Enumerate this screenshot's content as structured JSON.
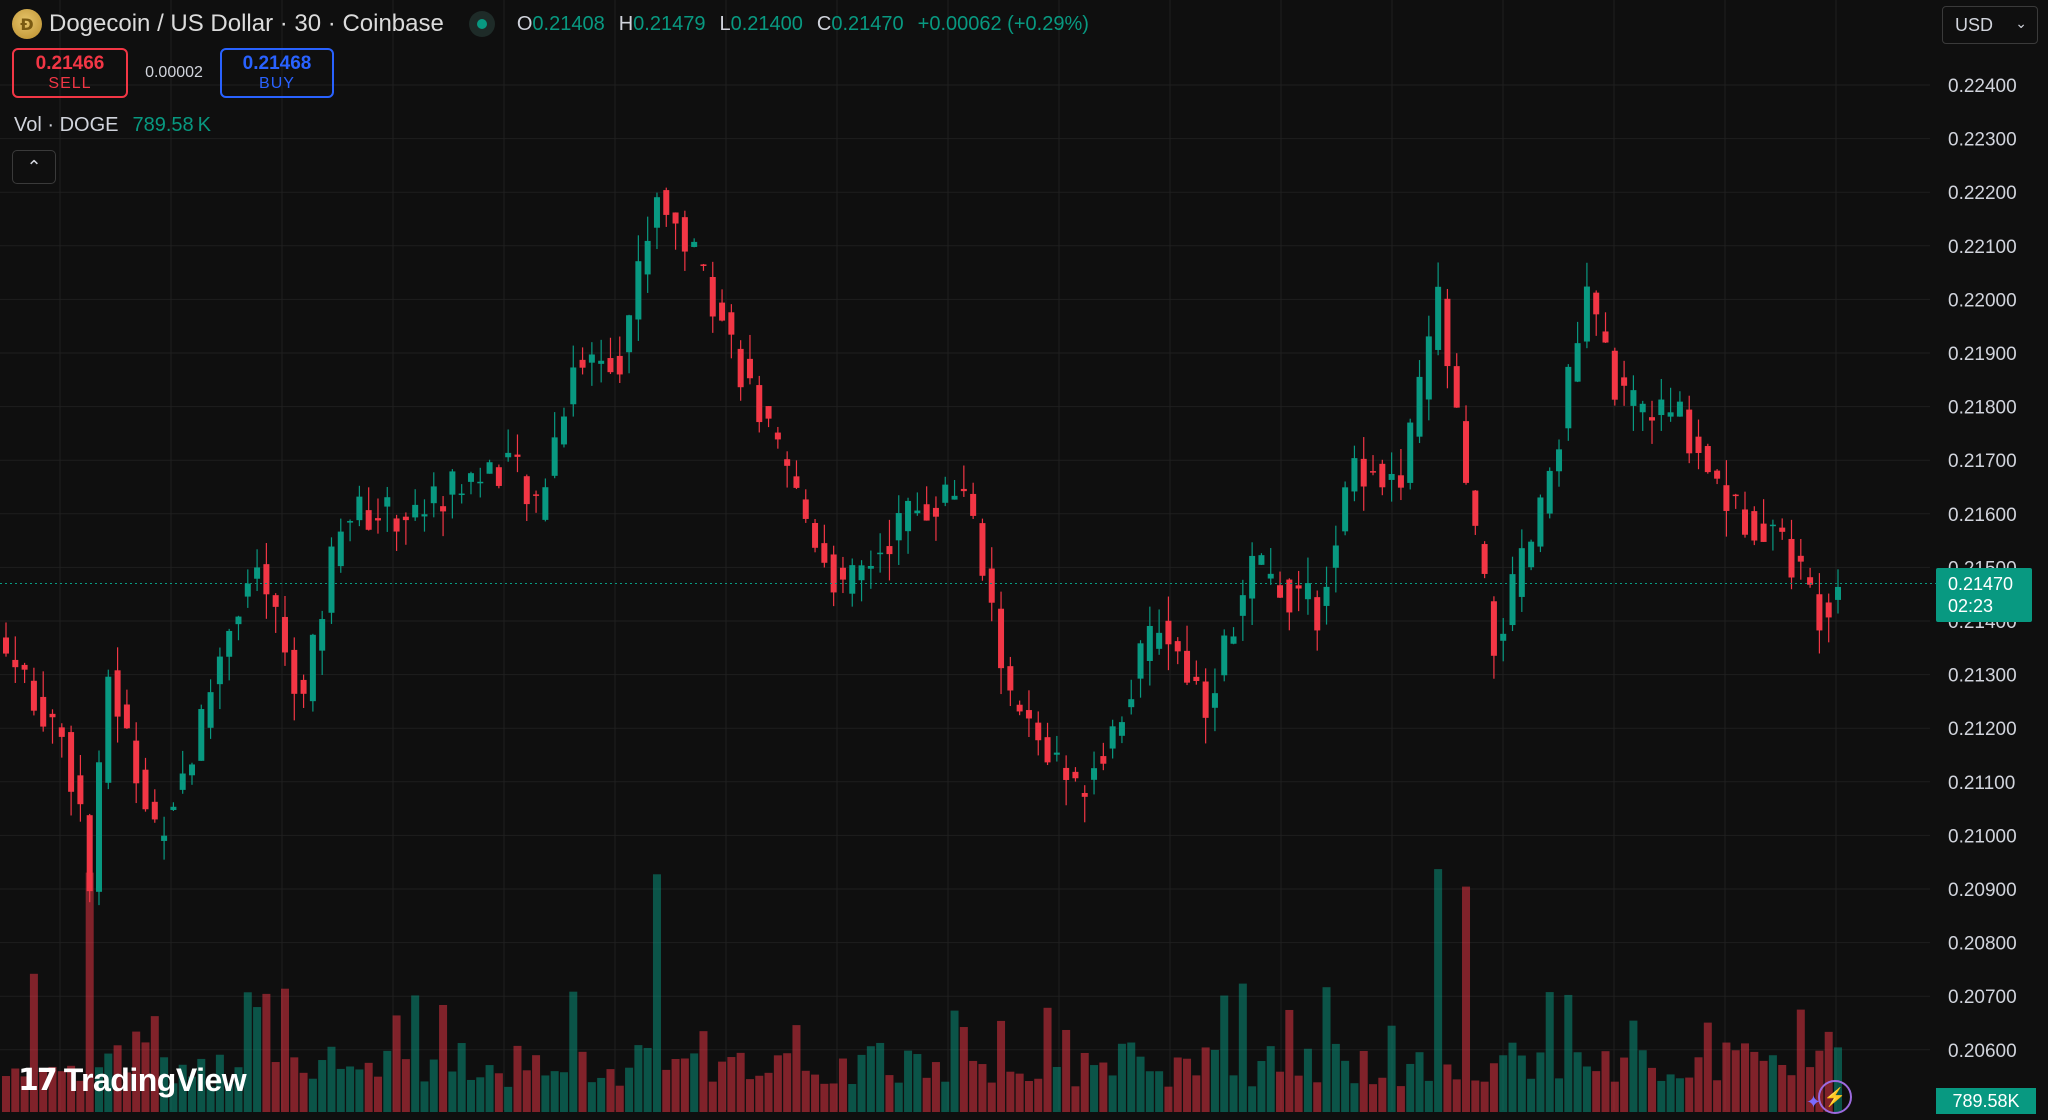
{
  "header": {
    "icon": "dogecoin-icon",
    "title": "Dogecoin / US Dollar · 30 · Coinbase",
    "o_label": "O",
    "o_value": "0.21408",
    "h_label": "H",
    "h_value": "0.21479",
    "l_label": "L",
    "l_value": "0.21400",
    "c_label": "C",
    "c_value": "0.21470",
    "change": "+0.00062 (+0.29%)"
  },
  "trade": {
    "sell_price": "0.21466",
    "sell_label": "SELL",
    "spread": "0.00002",
    "buy_price": "0.21468",
    "buy_label": "BUY"
  },
  "volume_legend": {
    "label": "Vol · DOGE",
    "value": "789.58 K"
  },
  "currency_select": {
    "value": "USD"
  },
  "last_price": {
    "price": "0.21470",
    "countdown": "02:23"
  },
  "volume_tag": "789.58K",
  "brand": {
    "mark": "17",
    "name": "TradingView"
  },
  "colors": {
    "up": "#089981",
    "down": "#f23645",
    "background": "#0f0f0f",
    "grid": "#1f1f1f",
    "sell": "#f23645",
    "buy": "#2962ff"
  },
  "chart_data": {
    "type": "candlestick",
    "interval": "30",
    "ylim": [
      0.2055,
      0.2245
    ],
    "y_ticks": [
      "0.22400",
      "0.22300",
      "0.22200",
      "0.22100",
      "0.22000",
      "0.21900",
      "0.21800",
      "0.21700",
      "0.21600",
      "0.21500",
      "0.21400",
      "0.21300",
      "0.21200",
      "0.21100",
      "0.21000",
      "0.20900",
      "0.20800",
      "0.20700",
      "0.20600"
    ],
    "last_price": 0.2147,
    "grid": true,
    "key_points": [
      {
        "i": 0,
        "c": 0.2134
      },
      {
        "i": 6,
        "c": 0.2118
      },
      {
        "i": 8,
        "c": 0.2105
      },
      {
        "i": 9,
        "c": 0.209
      },
      {
        "i": 11,
        "c": 0.213
      },
      {
        "i": 16,
        "c": 0.21
      },
      {
        "i": 20,
        "c": 0.2115
      },
      {
        "i": 24,
        "c": 0.214
      },
      {
        "i": 27,
        "c": 0.215
      },
      {
        "i": 32,
        "c": 0.2125
      },
      {
        "i": 36,
        "c": 0.216
      },
      {
        "i": 44,
        "c": 0.216
      },
      {
        "i": 48,
        "c": 0.2165
      },
      {
        "i": 54,
        "c": 0.217
      },
      {
        "i": 57,
        "c": 0.216
      },
      {
        "i": 61,
        "c": 0.2188
      },
      {
        "i": 66,
        "c": 0.219
      },
      {
        "i": 70,
        "c": 0.222
      },
      {
        "i": 75,
        "c": 0.2205
      },
      {
        "i": 83,
        "c": 0.217
      },
      {
        "i": 90,
        "c": 0.2145
      },
      {
        "i": 97,
        "c": 0.216
      },
      {
        "i": 103,
        "c": 0.2165
      },
      {
        "i": 108,
        "c": 0.2125
      },
      {
        "i": 115,
        "c": 0.2108
      },
      {
        "i": 119,
        "c": 0.212
      },
      {
        "i": 124,
        "c": 0.214
      },
      {
        "i": 129,
        "c": 0.2125
      },
      {
        "i": 134,
        "c": 0.215
      },
      {
        "i": 141,
        "c": 0.2142
      },
      {
        "i": 145,
        "c": 0.217
      },
      {
        "i": 150,
        "c": 0.2165
      },
      {
        "i": 154,
        "c": 0.22
      },
      {
        "i": 157,
        "c": 0.2165
      },
      {
        "i": 160,
        "c": 0.2135
      },
      {
        "i": 165,
        "c": 0.216
      },
      {
        "i": 170,
        "c": 0.22
      },
      {
        "i": 174,
        "c": 0.218
      },
      {
        "i": 180,
        "c": 0.2178
      },
      {
        "i": 186,
        "c": 0.216
      },
      {
        "i": 190,
        "c": 0.2158
      },
      {
        "i": 195,
        "c": 0.2142
      },
      {
        "i": 197,
        "c": 0.2147
      }
    ],
    "volume": {
      "last": "789.58K",
      "peak_bars": [
        9,
        70,
        154,
        157
      ]
    }
  }
}
